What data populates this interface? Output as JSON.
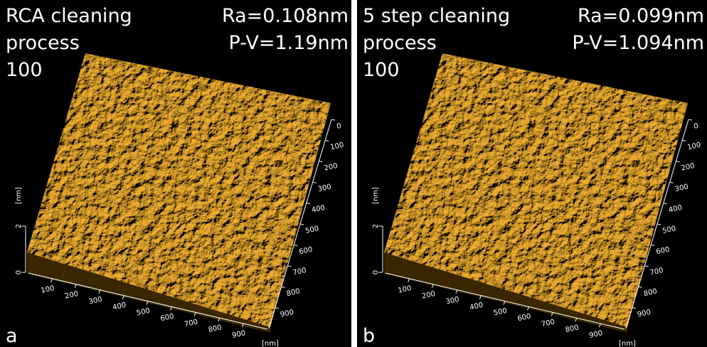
{
  "panels": [
    {
      "title_lines": [
        "RCA cleaning",
        "process",
        "100"
      ],
      "ra": "Ra=0.108nm",
      "pv": "P-V=1.19nm",
      "letter": "a",
      "z_ticks": [
        "0",
        "2"
      ],
      "z_unit": "[nm]",
      "x_ticks": [
        "100",
        "200",
        "300",
        "400",
        "500",
        "600",
        "700",
        "800",
        "900"
      ],
      "y_ticks": [
        "0",
        "100",
        "200",
        "300",
        "400",
        "500",
        "600",
        "700",
        "800",
        "900"
      ],
      "xy_unit": "[nm]"
    },
    {
      "title_lines": [
        "5 step cleaning",
        "process",
        "100"
      ],
      "ra": "Ra=0.099nm",
      "pv": "P-V=1.094nm",
      "letter": "b",
      "z_ticks": [
        "0",
        "2"
      ],
      "z_unit": "[nm]",
      "x_ticks": [
        "100",
        "200",
        "300",
        "400",
        "500",
        "600",
        "700",
        "800",
        "900"
      ],
      "y_ticks": [
        "0",
        "100",
        "200",
        "300",
        "400",
        "500",
        "600",
        "700",
        "800",
        "900"
      ],
      "xy_unit": "[nm]"
    }
  ]
}
